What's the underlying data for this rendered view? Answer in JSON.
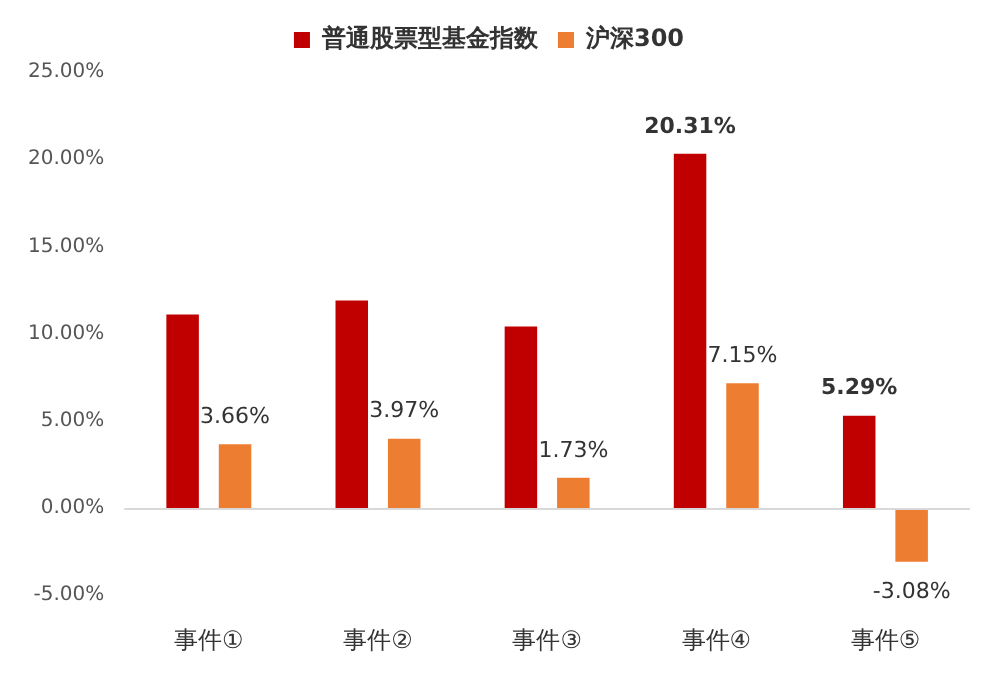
{
  "chart_data": {
    "type": "bar",
    "categories": [
      "事件①",
      "事件②",
      "事件③",
      "事件④",
      "事件⑤"
    ],
    "series": [
      {
        "name": "普通股票型基金指数",
        "color": "#c00000",
        "values": [
          11.1,
          11.9,
          10.4,
          20.31,
          5.29
        ],
        "value_labels": [
          null,
          null,
          null,
          "20.31%",
          "5.29%"
        ]
      },
      {
        "name": "沪深300",
        "color": "#ed7d31",
        "values": [
          3.66,
          3.97,
          1.73,
          7.15,
          -3.08
        ],
        "value_labels": [
          "3.66%",
          "3.97%",
          "1.73%",
          "7.15%",
          "-3.08%"
        ]
      }
    ],
    "ylim": [
      -5,
      25
    ],
    "yticks": [
      {
        "value": -5,
        "label": "-5.00%"
      },
      {
        "value": 0,
        "label": "0.00%"
      },
      {
        "value": 5,
        "label": "5.00%"
      },
      {
        "value": 10,
        "label": "10.00%"
      },
      {
        "value": 15,
        "label": "15.00%"
      },
      {
        "value": 20,
        "label": "20.00%"
      },
      {
        "value": 25,
        "label": "25.00%"
      }
    ],
    "ref_lines": [
      {
        "axis": "y",
        "value": 0,
        "color": "#d9d9d9"
      }
    ],
    "grid": false,
    "legend": "top"
  }
}
